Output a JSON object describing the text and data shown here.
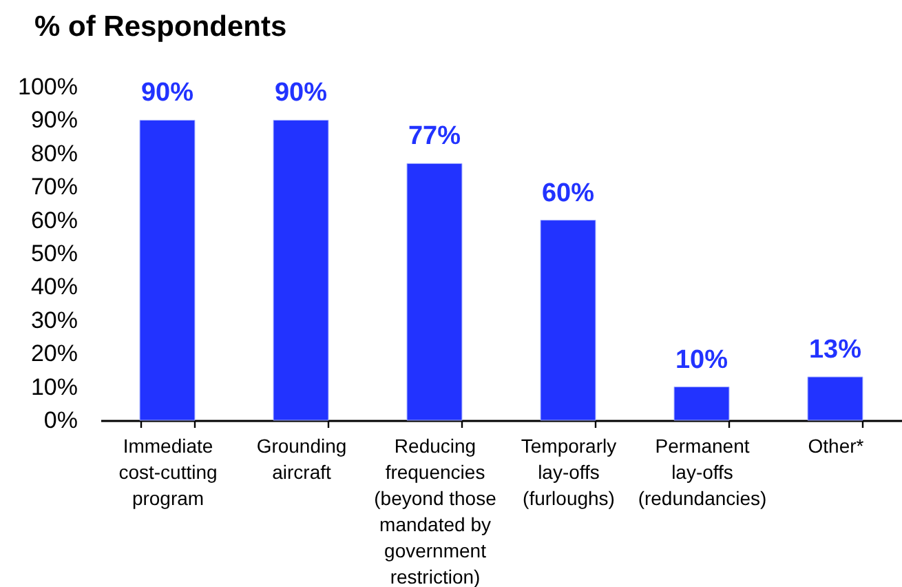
{
  "chart_data": {
    "type": "bar",
    "title": "% of Respondents",
    "categories": [
      "Immediate cost-cutting program",
      "Grounding aircraft",
      "Reducing frequencies (beyond those mandated by government restriction)",
      "Temporarly lay-offs (furloughs)",
      "Permanent lay-offs (redundancies)",
      "Other*"
    ],
    "values": [
      90,
      90,
      77,
      60,
      10,
      13
    ],
    "value_labels": [
      "90%",
      "90%",
      "77%",
      "60%",
      "10%",
      "13%"
    ],
    "color": "#2233ff",
    "ylim": [
      0,
      100
    ],
    "yticks": [
      {
        "value": 0,
        "label": "0%"
      },
      {
        "value": 10,
        "label": "10%"
      },
      {
        "value": 20,
        "label": "20%"
      },
      {
        "value": 30,
        "label": "30%"
      },
      {
        "value": 40,
        "label": "40%"
      },
      {
        "value": 50,
        "label": "50%"
      },
      {
        "value": 60,
        "label": "60%"
      },
      {
        "value": 70,
        "label": "70%"
      },
      {
        "value": 80,
        "label": "80%"
      },
      {
        "value": 90,
        "label": "90%"
      },
      {
        "value": 100,
        "label": "100%"
      }
    ],
    "grid": false
  }
}
